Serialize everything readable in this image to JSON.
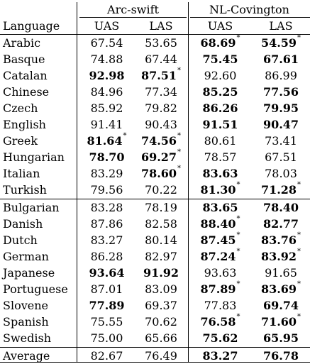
{
  "table": {
    "group_headers": [
      "Arc-swift",
      "NL-Covington"
    ],
    "column_headers": [
      "Language",
      "UAS",
      "LAS",
      "UAS",
      "LAS"
    ],
    "rows_group1": [
      {
        "language": "Arabic",
        "values": [
          "67.54",
          "53.65",
          "68.69",
          "54.59"
        ],
        "bold": [
          false,
          false,
          true,
          true
        ],
        "star": [
          false,
          false,
          true,
          true
        ]
      },
      {
        "language": "Basque",
        "values": [
          "74.88",
          "67.44",
          "75.45",
          "67.61"
        ],
        "bold": [
          false,
          false,
          true,
          true
        ],
        "star": [
          false,
          false,
          false,
          false
        ]
      },
      {
        "language": "Catalan",
        "values": [
          "92.98",
          "87.51",
          "92.60",
          "86.99"
        ],
        "bold": [
          true,
          true,
          false,
          false
        ],
        "star": [
          false,
          true,
          false,
          false
        ]
      },
      {
        "language": "Chinese",
        "values": [
          "84.96",
          "77.34",
          "85.25",
          "77.56"
        ],
        "bold": [
          false,
          false,
          true,
          true
        ],
        "star": [
          false,
          false,
          false,
          false
        ]
      },
      {
        "language": "Czech",
        "values": [
          "85.92",
          "79.82",
          "86.26",
          "79.95"
        ],
        "bold": [
          false,
          false,
          true,
          true
        ],
        "star": [
          false,
          false,
          false,
          false
        ]
      },
      {
        "language": "English",
        "values": [
          "91.41",
          "90.43",
          "91.51",
          "90.47"
        ],
        "bold": [
          false,
          false,
          true,
          true
        ],
        "star": [
          false,
          false,
          false,
          false
        ]
      },
      {
        "language": "Greek",
        "values": [
          "81.64",
          "74.56",
          "80.61",
          "73.41"
        ],
        "bold": [
          true,
          true,
          false,
          false
        ],
        "star": [
          true,
          true,
          false,
          false
        ]
      },
      {
        "language": "Hungarian",
        "values": [
          "78.70",
          "69.27",
          "78.57",
          "67.51"
        ],
        "bold": [
          true,
          true,
          false,
          false
        ],
        "star": [
          false,
          true,
          false,
          false
        ]
      },
      {
        "language": "Italian",
        "values": [
          "83.29",
          "78.60",
          "83.63",
          "78.03"
        ],
        "bold": [
          false,
          true,
          true,
          false
        ],
        "star": [
          false,
          true,
          false,
          false
        ]
      },
      {
        "language": "Turkish",
        "values": [
          "79.56",
          "70.22",
          "81.30",
          "71.28"
        ],
        "bold": [
          false,
          false,
          true,
          true
        ],
        "star": [
          false,
          false,
          true,
          true
        ]
      }
    ],
    "rows_group2": [
      {
        "language": "Bulgarian",
        "values": [
          "83.28",
          "78.19",
          "83.65",
          "78.40"
        ],
        "bold": [
          false,
          false,
          true,
          true
        ],
        "star": [
          false,
          false,
          false,
          false
        ]
      },
      {
        "language": "Danish",
        "values": [
          "87.86",
          "82.58",
          "88.40",
          "82.77"
        ],
        "bold": [
          false,
          false,
          true,
          true
        ],
        "star": [
          false,
          false,
          true,
          false
        ]
      },
      {
        "language": "Dutch",
        "values": [
          "83.27",
          "80.14",
          "87.45",
          "83.76"
        ],
        "bold": [
          false,
          false,
          true,
          true
        ],
        "star": [
          false,
          false,
          true,
          true
        ]
      },
      {
        "language": "German",
        "values": [
          "86.28",
          "82.97",
          "87.24",
          "83.92"
        ],
        "bold": [
          false,
          false,
          true,
          true
        ],
        "star": [
          false,
          false,
          true,
          true
        ]
      },
      {
        "language": "Japanese",
        "values": [
          "93.64",
          "91.92",
          "93.63",
          "91.65"
        ],
        "bold": [
          true,
          true,
          false,
          false
        ],
        "star": [
          false,
          false,
          false,
          false
        ]
      },
      {
        "language": "Portuguese",
        "values": [
          "87.01",
          "83.09",
          "87.89",
          "83.69"
        ],
        "bold": [
          false,
          false,
          true,
          true
        ],
        "star": [
          false,
          false,
          true,
          true
        ]
      },
      {
        "language": "Slovene",
        "values": [
          "77.89",
          "69.37",
          "77.83",
          "69.74"
        ],
        "bold": [
          true,
          false,
          false,
          true
        ],
        "star": [
          false,
          false,
          false,
          false
        ]
      },
      {
        "language": "Spanish",
        "values": [
          "75.55",
          "70.62",
          "76.58",
          "71.60"
        ],
        "bold": [
          false,
          false,
          true,
          true
        ],
        "star": [
          false,
          false,
          true,
          true
        ]
      },
      {
        "language": "Swedish",
        "values": [
          "75.00",
          "65.66",
          "75.62",
          "65.95"
        ],
        "bold": [
          false,
          false,
          true,
          true
        ],
        "star": [
          false,
          false,
          false,
          false
        ]
      }
    ],
    "average_row": {
      "language": "Average",
      "values": [
        "82.67",
        "76.49",
        "83.27",
        "76.78"
      ],
      "bold": [
        false,
        false,
        true,
        true
      ],
      "star": [
        false,
        false,
        false,
        false
      ]
    },
    "star_symbol": "*"
  }
}
